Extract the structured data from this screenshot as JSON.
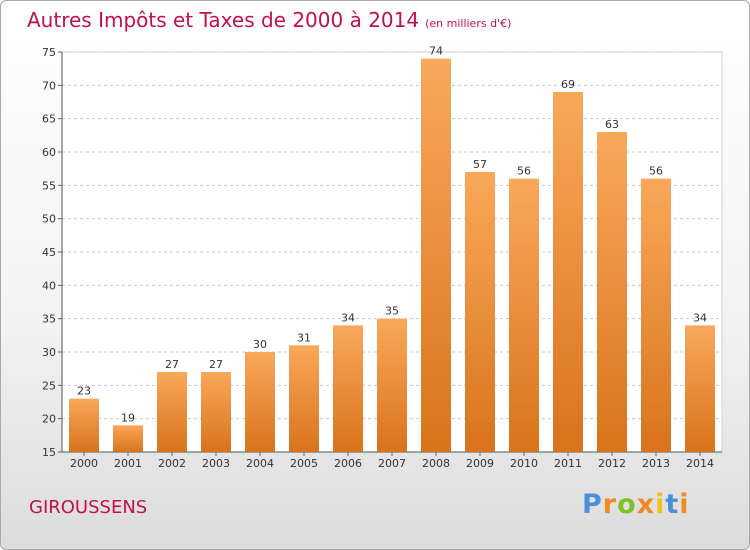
{
  "header": {
    "title": "Autres Impôts et Taxes de 2000 à 2014",
    "subtitle": "(en milliers d'€)"
  },
  "footer": {
    "commune": "GIROUSSENS",
    "logo": [
      "P",
      "r",
      "o",
      "x",
      "i",
      "t",
      "i"
    ]
  },
  "colors": {
    "title": "#c0114a",
    "bar_light": "#f9a85a",
    "bar_dark": "#d9731c",
    "logo": [
      "#4a90d9",
      "#f08a24",
      "#7fbf2a",
      "#f08a24",
      "#f0c020",
      "#4a90d9",
      "#f08a24"
    ]
  },
  "chart_data": {
    "type": "bar",
    "categories": [
      "2000",
      "2001",
      "2002",
      "2003",
      "2004",
      "2005",
      "2006",
      "2007",
      "2008",
      "2009",
      "2010",
      "2011",
      "2012",
      "2013",
      "2014"
    ],
    "values": [
      23,
      19,
      27,
      27,
      30,
      31,
      34,
      35,
      74,
      57,
      56,
      69,
      63,
      56,
      34
    ],
    "title": "Autres Impôts et Taxes de 2000 à 2014",
    "ylim": [
      15,
      75
    ],
    "yticks": [
      15,
      20,
      25,
      30,
      35,
      40,
      45,
      50,
      55,
      60,
      65,
      70,
      75
    ],
    "grid": true,
    "data_labels": true
  }
}
